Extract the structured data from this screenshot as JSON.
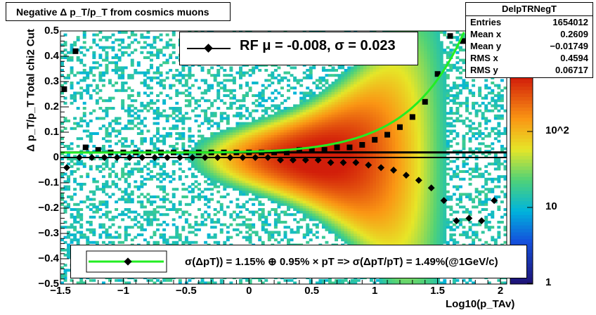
{
  "title": "Negative Δ p_T/p_T from cosmics muons",
  "stats": {
    "name": "DelpTRNegT",
    "rows": [
      {
        "label": "Entries",
        "value": "1654012"
      },
      {
        "label": "Mean x",
        "value": "0.2609"
      },
      {
        "label": "Mean y",
        "value": "−0.01749"
      },
      {
        "label": "RMS x",
        "value": "0.4594"
      },
      {
        "label": "RMS y",
        "value": "0.06717"
      }
    ]
  },
  "fit_legend": "RF μ = -0.008, σ =   0.023",
  "res_legend": "σ(ΔpT)) =  1.15% ⊕  0.95% × pT => σ(ΔpT/pT) =  1.49%(@1GeV/c)",
  "colors": {
    "fit_curve": "#22ee22",
    "markers": "#000000"
  },
  "chart_data": {
    "type": "heatmap",
    "title": "Negative Δ p_T/p_T from cosmics muons",
    "xlabel": "Log10(p_TAv)",
    "ylabel": "Δ p_T/p_T   Total chi2 Cut",
    "xlim": [
      -1.5,
      2.05
    ],
    "ylim": [
      -0.5,
      0.5
    ],
    "x_ticks": [
      "−1.5",
      "−1",
      "−0.5",
      "0",
      "0.5",
      "1",
      "1.5",
      "2"
    ],
    "y_ticks": [
      "0.5",
      "0.4",
      "0.3",
      "0.2",
      "0.1",
      "0",
      "−0.1",
      "−0.2",
      "−0.3",
      "−0.4",
      "−0.5"
    ],
    "z_scale": "log",
    "z_ticks": [
      "1",
      "10",
      "10^2"
    ],
    "series": [
      {
        "name": "mean",
        "x": [
          -1.47,
          -1.38,
          -1.3,
          -1.2,
          -1.1,
          -1.0,
          -0.9,
          -0.8,
          -0.7,
          -0.6,
          -0.5,
          -0.4,
          -0.3,
          -0.2,
          -0.1,
          0,
          0.1,
          0.2,
          0.3,
          0.4,
          0.5,
          0.6,
          0.7,
          0.8,
          0.9,
          1.0,
          1.1,
          1.2,
          1.3,
          1.4,
          1.5,
          1.6,
          1.7,
          1.8,
          1.9
        ],
        "y": [
          0.27,
          0.42,
          0.04,
          0.03,
          0.02,
          0.02,
          0.02,
          0.02,
          0.02,
          0.02,
          0.02,
          0.02,
          0.02,
          0.02,
          0.02,
          0.02,
          0.02,
          0.02,
          0.02,
          0.03,
          0.03,
          0.03,
          0.04,
          0.04,
          0.05,
          0.07,
          0.09,
          0.12,
          0.16,
          0.22,
          0.33,
          0.48,
          0.46,
          0.45,
          0.46
        ]
      },
      {
        "name": "sigma",
        "x": [
          -1.45,
          -1.35,
          -1.25,
          -1.15,
          -1.05,
          -0.95,
          -0.85,
          -0.75,
          -0.65,
          -0.55,
          -0.45,
          -0.35,
          -0.25,
          -0.15,
          -0.05,
          0.05,
          0.15,
          0.25,
          0.35,
          0.45,
          0.55,
          0.65,
          0.75,
          0.85,
          0.95,
          1.05,
          1.15,
          1.25,
          1.35,
          1.45,
          1.55,
          1.65,
          1.75,
          1.85,
          1.95
        ],
        "y": [
          -0.04,
          0.0,
          0.0,
          0.0,
          0.0,
          0.0,
          0.0,
          0.0,
          0.0,
          0.0,
          0.0,
          0.0,
          0.0,
          0.0,
          0.0,
          0.0,
          0.0,
          -0.01,
          -0.01,
          -0.01,
          -0.01,
          -0.02,
          -0.02,
          -0.02,
          -0.03,
          -0.04,
          -0.05,
          -0.07,
          -0.09,
          -0.12,
          -0.17,
          -0.25,
          -0.24,
          -0.25,
          -0.17
        ]
      }
    ],
    "fit": {
      "name": "fit",
      "formula": "sqrt(0.0115^2 + (0.0095*10^x)^2)"
    }
  }
}
